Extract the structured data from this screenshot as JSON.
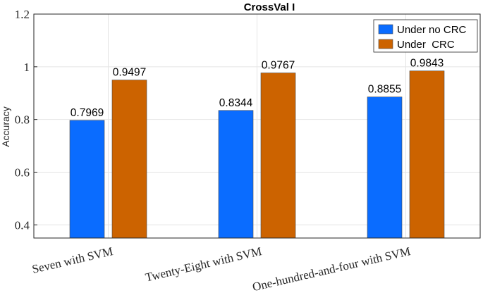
{
  "chart_data": {
    "type": "bar",
    "title": "CrossVal I",
    "xlabel": "",
    "ylabel": "Accuracy",
    "ylim": [
      0.35,
      1.2
    ],
    "yticks": [
      "0.4",
      "0.6",
      "0.8",
      "1",
      "1.2"
    ],
    "categories": [
      "Seven with SVM",
      "Twenty-Eight with SVM",
      "One-hundred-and-four with SVM"
    ],
    "series": [
      {
        "name": "Under no CRC",
        "color": "#0a6cff",
        "values": [
          0.7969,
          0.8344,
          0.8855
        ],
        "labels": [
          "0.7969",
          "0.8344",
          "0.8855"
        ]
      },
      {
        "name": "Under  CRC",
        "color": "#cc6300",
        "values": [
          0.9497,
          0.9767,
          0.9843
        ],
        "labels": [
          "0.9497",
          "0.9767",
          "0.9843"
        ]
      }
    ],
    "grid": true,
    "legend_position": "top-right"
  }
}
